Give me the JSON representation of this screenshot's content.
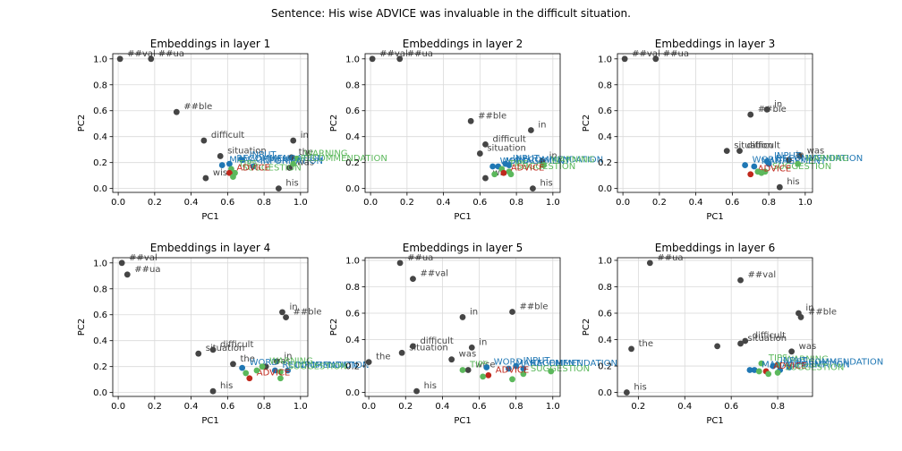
{
  "figure": {
    "title": "Sentence: His wise ADVICE was invaluable in the difficult situation."
  },
  "colors": {
    "context": "#454545",
    "target": "#c0281c",
    "blue": "#1f77b4",
    "green": "#5cb85c"
  },
  "chart_data": [
    {
      "type": "scatter",
      "title": "Embeddings in layer 1",
      "xlabel": "PC1",
      "ylabel": "PC2",
      "xlim": [
        -0.03,
        1.04
      ],
      "ylim": [
        -0.03,
        1.04
      ],
      "xticks": [
        "0.0",
        "0.2",
        "0.4",
        "0.6",
        "0.8",
        "1.0"
      ],
      "yticks": [
        "0.0",
        "0.2",
        "0.4",
        "0.6",
        "0.8",
        "1.0"
      ],
      "grid": true,
      "points": [
        {
          "label": "##val",
          "x": 0.01,
          "y": 1.0,
          "color": "context"
        },
        {
          "label": "##ua",
          "x": 0.18,
          "y": 1.0,
          "color": "context"
        },
        {
          "label": "##ble",
          "x": 0.32,
          "y": 0.59,
          "color": "context"
        },
        {
          "label": "difficult",
          "x": 0.47,
          "y": 0.37,
          "color": "context"
        },
        {
          "label": "in",
          "x": 0.96,
          "y": 0.37,
          "color": "context"
        },
        {
          "label": "the",
          "x": 0.95,
          "y": 0.24,
          "color": "context"
        },
        {
          "label": "situation",
          "x": 0.56,
          "y": 0.25,
          "color": "context"
        },
        {
          "label": "was",
          "x": 0.94,
          "y": 0.16,
          "color": "context"
        },
        {
          "label": "wise",
          "x": 0.48,
          "y": 0.08,
          "color": "context"
        },
        {
          "label": "his",
          "x": 0.88,
          "y": 0.0,
          "color": "context"
        },
        {
          "label": "INPUT",
          "x": 0.68,
          "y": 0.22,
          "color": "blue"
        },
        {
          "label": "MANAGEMENT",
          "x": 0.57,
          "y": 0.18,
          "color": "blue"
        },
        {
          "label": "RECOMMENDATION",
          "x": 0.61,
          "y": 0.19,
          "color": "blue"
        },
        {
          "label": "WARNING",
          "x": 0.98,
          "y": 0.23,
          "color": "green"
        },
        {
          "label": "INFORMATION",
          "x": 0.74,
          "y": 0.17,
          "color": "blue"
        },
        {
          "label": "TIPS",
          "x": 0.62,
          "y": 0.15,
          "color": "green"
        },
        {
          "label": "SUGGESTION",
          "x": 0.64,
          "y": 0.12,
          "color": "green"
        },
        {
          "label": "RECOMMENDATION",
          "x": 0.96,
          "y": 0.19,
          "color": "green"
        },
        {
          "label": "ADVICE",
          "x": 0.61,
          "y": 0.12,
          "color": "target"
        },
        {
          "label": "",
          "x": 0.63,
          "y": 0.09,
          "color": "green"
        }
      ]
    },
    {
      "type": "scatter",
      "title": "Embeddings in layer 2",
      "xlabel": "PC1",
      "ylabel": "PC2",
      "xlim": [
        -0.03,
        1.04
      ],
      "ylim": [
        -0.03,
        1.04
      ],
      "xticks": [
        "0.0",
        "0.2",
        "0.4",
        "0.6",
        "0.8",
        "1.0"
      ],
      "yticks": [
        "0.0",
        "0.2",
        "0.4",
        "0.6",
        "0.8",
        "1.0"
      ],
      "grid": true,
      "points": [
        {
          "label": "##val",
          "x": 0.01,
          "y": 1.0,
          "color": "context"
        },
        {
          "label": "##ua",
          "x": 0.16,
          "y": 1.0,
          "color": "context"
        },
        {
          "label": "##ble",
          "x": 0.55,
          "y": 0.52,
          "color": "context"
        },
        {
          "label": "in",
          "x": 0.88,
          "y": 0.45,
          "color": "context"
        },
        {
          "label": "difficult",
          "x": 0.63,
          "y": 0.34,
          "color": "context"
        },
        {
          "label": "situation",
          "x": 0.6,
          "y": 0.27,
          "color": "context"
        },
        {
          "label": "in",
          "x": 0.94,
          "y": 0.21,
          "color": "context"
        },
        {
          "label": "wise",
          "x": 0.63,
          "y": 0.08,
          "color": "context"
        },
        {
          "label": "his",
          "x": 0.89,
          "y": 0.0,
          "color": "context"
        },
        {
          "label": "INPUT",
          "x": 0.74,
          "y": 0.19,
          "color": "blue"
        },
        {
          "label": "WORD",
          "x": 0.67,
          "y": 0.17,
          "color": "blue"
        },
        {
          "label": "MANAGEMENT",
          "x": 0.7,
          "y": 0.17,
          "color": "blue"
        },
        {
          "label": "RECOMMENDATION",
          "x": 0.76,
          "y": 0.18,
          "color": "blue"
        },
        {
          "label": "WARNING",
          "x": 0.95,
          "y": 0.18,
          "color": "green"
        },
        {
          "label": "TIPS",
          "x": 0.72,
          "y": 0.15,
          "color": "green"
        },
        {
          "label": "SUGGESTION",
          "x": 0.76,
          "y": 0.13,
          "color": "green"
        },
        {
          "label": "ADVICE",
          "x": 0.73,
          "y": 0.12,
          "color": "target"
        },
        {
          "label": "",
          "x": 0.68,
          "y": 0.11,
          "color": "green"
        },
        {
          "label": "",
          "x": 0.77,
          "y": 0.11,
          "color": "green"
        }
      ]
    },
    {
      "type": "scatter",
      "title": "Embeddings in layer 3",
      "xlabel": "PC1",
      "ylabel": "PC2",
      "xlim": [
        -0.03,
        1.04
      ],
      "ylim": [
        -0.03,
        1.04
      ],
      "xticks": [
        "0.0",
        "0.2",
        "0.4",
        "0.6",
        "0.8",
        "1.0"
      ],
      "yticks": [
        "0.0",
        "0.2",
        "0.4",
        "0.6",
        "0.8",
        "1.0"
      ],
      "grid": true,
      "points": [
        {
          "label": "##val",
          "x": 0.01,
          "y": 1.0,
          "color": "context"
        },
        {
          "label": "##ua",
          "x": 0.18,
          "y": 1.0,
          "color": "context"
        },
        {
          "label": "in",
          "x": 0.79,
          "y": 0.61,
          "color": "context"
        },
        {
          "label": "##ble",
          "x": 0.7,
          "y": 0.57,
          "color": "context"
        },
        {
          "label": "situation",
          "x": 0.57,
          "y": 0.29,
          "color": "context"
        },
        {
          "label": "difficult",
          "x": 0.64,
          "y": 0.29,
          "color": "context"
        },
        {
          "label": "was",
          "x": 0.97,
          "y": 0.25,
          "color": "context"
        },
        {
          "label": "in",
          "x": 0.91,
          "y": 0.22,
          "color": "context"
        },
        {
          "label": "his",
          "x": 0.86,
          "y": 0.01,
          "color": "context"
        },
        {
          "label": "WORD",
          "x": 0.67,
          "y": 0.18,
          "color": "blue"
        },
        {
          "label": "MANAGEMENT",
          "x": 0.72,
          "y": 0.17,
          "color": "blue"
        },
        {
          "label": "INPUT",
          "x": 0.79,
          "y": 0.21,
          "color": "blue"
        },
        {
          "label": "RECOMMENDATION",
          "x": 0.8,
          "y": 0.19,
          "color": "blue"
        },
        {
          "label": "WARNING",
          "x": 0.96,
          "y": 0.19,
          "color": "green"
        },
        {
          "label": "SUGGESTION",
          "x": 0.78,
          "y": 0.13,
          "color": "green"
        },
        {
          "label": "ADVICE",
          "x": 0.7,
          "y": 0.11,
          "color": "target"
        },
        {
          "label": "",
          "x": 0.74,
          "y": 0.13,
          "color": "green"
        },
        {
          "label": "",
          "x": 0.76,
          "y": 0.12,
          "color": "green"
        }
      ]
    },
    {
      "type": "scatter",
      "title": "Embeddings in layer 4",
      "xlabel": "PC1",
      "ylabel": "PC2",
      "xlim": [
        -0.03,
        1.04
      ],
      "ylim": [
        -0.03,
        1.04
      ],
      "xticks": [
        "0.0",
        "0.2",
        "0.4",
        "0.6",
        "0.8",
        "1.0"
      ],
      "yticks": [
        "0.0",
        "0.2",
        "0.4",
        "0.6",
        "0.8",
        "1.0"
      ],
      "grid": true,
      "points": [
        {
          "label": "##val",
          "x": 0.02,
          "y": 1.0,
          "color": "context"
        },
        {
          "label": "##ua",
          "x": 0.05,
          "y": 0.91,
          "color": "context"
        },
        {
          "label": "in",
          "x": 0.9,
          "y": 0.62,
          "color": "context"
        },
        {
          "label": "##ble",
          "x": 0.92,
          "y": 0.58,
          "color": "context"
        },
        {
          "label": "difficult",
          "x": 0.52,
          "y": 0.33,
          "color": "context"
        },
        {
          "label": "situation",
          "x": 0.44,
          "y": 0.3,
          "color": "context"
        },
        {
          "label": "in",
          "x": 0.87,
          "y": 0.24,
          "color": "context"
        },
        {
          "label": "was",
          "x": 0.81,
          "y": 0.2,
          "color": "context"
        },
        {
          "label": "the",
          "x": 0.63,
          "y": 0.22,
          "color": "context"
        },
        {
          "label": "his",
          "x": 0.52,
          "y": 0.01,
          "color": "context"
        },
        {
          "label": "WORD",
          "x": 0.68,
          "y": 0.19,
          "color": "blue"
        },
        {
          "label": "INFORMATION",
          "x": 0.93,
          "y": 0.17,
          "color": "blue"
        },
        {
          "label": "RECOMMENDATION",
          "x": 0.86,
          "y": 0.17,
          "color": "blue"
        },
        {
          "label": "SUGGESTION",
          "x": 0.89,
          "y": 0.16,
          "color": "green"
        },
        {
          "label": "WARNING",
          "x": 0.79,
          "y": 0.2,
          "color": "green"
        },
        {
          "label": "ADVICE",
          "x": 0.72,
          "y": 0.11,
          "color": "target"
        },
        {
          "label": "",
          "x": 0.7,
          "y": 0.15,
          "color": "green"
        },
        {
          "label": "",
          "x": 0.76,
          "y": 0.17,
          "color": "green"
        },
        {
          "label": "",
          "x": 0.89,
          "y": 0.11,
          "color": "green"
        }
      ]
    },
    {
      "type": "scatter",
      "title": "Embeddings in layer 5",
      "xlabel": "PC1",
      "ylabel": "PC2",
      "xlim": [
        -0.02,
        1.04
      ],
      "ylim": [
        -0.03,
        1.02
      ],
      "xticks": [
        "0.0",
        "0.2",
        "0.4",
        "0.6",
        "0.8",
        "1.0"
      ],
      "yticks": [
        "0.0",
        "0.2",
        "0.4",
        "0.6",
        "0.8",
        "1.0"
      ],
      "grid": true,
      "points": [
        {
          "label": "##ua",
          "x": 0.17,
          "y": 0.98,
          "color": "context"
        },
        {
          "label": "##val",
          "x": 0.24,
          "y": 0.86,
          "color": "context"
        },
        {
          "label": "##ble",
          "x": 0.78,
          "y": 0.61,
          "color": "context"
        },
        {
          "label": "in",
          "x": 0.51,
          "y": 0.57,
          "color": "context"
        },
        {
          "label": "difficult",
          "x": 0.24,
          "y": 0.35,
          "color": "context"
        },
        {
          "label": "situation",
          "x": 0.18,
          "y": 0.3,
          "color": "context"
        },
        {
          "label": "in",
          "x": 0.56,
          "y": 0.34,
          "color": "context"
        },
        {
          "label": "was",
          "x": 0.45,
          "y": 0.25,
          "color": "context"
        },
        {
          "label": "the",
          "x": 0.0,
          "y": 0.23,
          "color": "context"
        },
        {
          "label": "wise",
          "x": 0.54,
          "y": 0.17,
          "color": "context"
        },
        {
          "label": "his",
          "x": 0.26,
          "y": 0.01,
          "color": "context"
        },
        {
          "label": "TIPS",
          "x": 0.51,
          "y": 0.17,
          "color": "green"
        },
        {
          "label": "WORD",
          "x": 0.64,
          "y": 0.19,
          "color": "blue"
        },
        {
          "label": "INPUT",
          "x": 0.8,
          "y": 0.2,
          "color": "blue"
        },
        {
          "label": "MANAGEMENT",
          "x": 0.76,
          "y": 0.18,
          "color": "blue"
        },
        {
          "label": "RECOMMENDATION",
          "x": 0.84,
          "y": 0.18,
          "color": "blue"
        },
        {
          "label": "SUGGESTION",
          "x": 0.84,
          "y": 0.14,
          "color": "green"
        },
        {
          "label": "ADVICE",
          "x": 0.65,
          "y": 0.13,
          "color": "target"
        },
        {
          "label": "",
          "x": 0.62,
          "y": 0.12,
          "color": "green"
        },
        {
          "label": "",
          "x": 0.78,
          "y": 0.1,
          "color": "green"
        },
        {
          "label": "",
          "x": 0.99,
          "y": 0.16,
          "color": "green"
        }
      ]
    },
    {
      "type": "scatter",
      "title": "Embeddings in layer 6",
      "xlabel": "PC1",
      "ylabel": "PC2",
      "xlim": [
        0.11,
        0.95
      ],
      "ylim": [
        -0.03,
        1.02
      ],
      "xticks": [
        "0.2",
        "0.4",
        "0.6",
        "0.8"
      ],
      "yticks": [
        "0.0",
        "0.2",
        "0.4",
        "0.6",
        "0.8",
        "1.0"
      ],
      "grid": true,
      "points": [
        {
          "label": "##ua",
          "x": 0.25,
          "y": 0.98,
          "color": "context"
        },
        {
          "label": "##val",
          "x": 0.64,
          "y": 0.85,
          "color": "context"
        },
        {
          "label": "in",
          "x": 0.89,
          "y": 0.6,
          "color": "context"
        },
        {
          "label": "##ble",
          "x": 0.9,
          "y": 0.57,
          "color": "context"
        },
        {
          "label": "difficult",
          "x": 0.66,
          "y": 0.39,
          "color": "context"
        },
        {
          "label": "situation",
          "x": 0.64,
          "y": 0.37,
          "color": "context"
        },
        {
          "label": "the",
          "x": 0.17,
          "y": 0.33,
          "color": "context"
        },
        {
          "label": "was",
          "x": 0.86,
          "y": 0.31,
          "color": "context"
        },
        {
          "label": "",
          "x": 0.54,
          "y": 0.35,
          "color": "context"
        },
        {
          "label": "his",
          "x": 0.15,
          "y": 0.0,
          "color": "context"
        },
        {
          "label": "TIPS",
          "x": 0.73,
          "y": 0.22,
          "color": "green"
        },
        {
          "label": "WARNING",
          "x": 0.8,
          "y": 0.21,
          "color": "green"
        },
        {
          "label": "INPUT",
          "x": 0.78,
          "y": 0.2,
          "color": "blue"
        },
        {
          "label": "MANAGEMENT",
          "x": 0.7,
          "y": 0.17,
          "color": "blue"
        },
        {
          "label": "RECOMMENDATION",
          "x": 0.85,
          "y": 0.19,
          "color": "blue"
        },
        {
          "label": "INFORMATION",
          "x": 0.81,
          "y": 0.17,
          "color": "blue"
        },
        {
          "label": "ADVICE",
          "x": 0.75,
          "y": 0.16,
          "color": "target"
        },
        {
          "label": "SUGGESTION",
          "x": 0.8,
          "y": 0.15,
          "color": "green"
        },
        {
          "label": "",
          "x": 0.68,
          "y": 0.17,
          "color": "blue"
        },
        {
          "label": "",
          "x": 0.72,
          "y": 0.16,
          "color": "green"
        },
        {
          "label": "",
          "x": 0.76,
          "y": 0.14,
          "color": "green"
        }
      ]
    }
  ]
}
